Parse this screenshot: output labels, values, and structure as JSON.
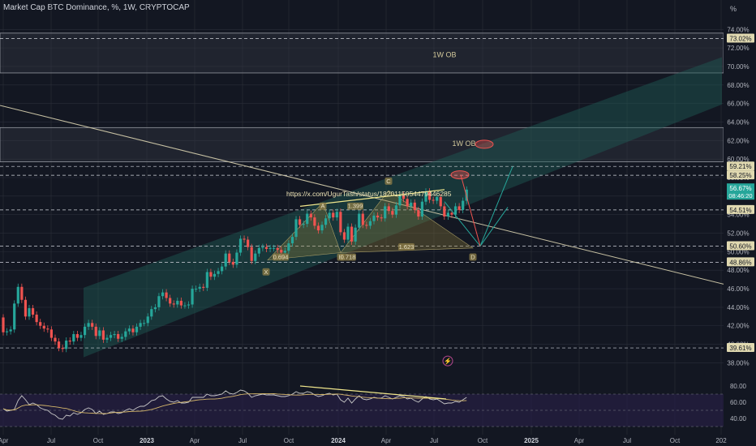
{
  "header": {
    "title": "Market Cap BTC Dominance, %, 1W, CRYPTOCAP"
  },
  "colors": {
    "background": "#131722",
    "up": "#26a69a",
    "down": "#ef5350",
    "channel": "#1f5d57",
    "grid": "#2a2e39",
    "yellow_line": "#f0e68c",
    "trend_line": "#c7c1a3",
    "label_bg": "#d1d4dc"
  },
  "chart_data": {
    "type": "candlestick",
    "title": "Market Cap BTC Dominance, %, 1W, CRYPTOCAP",
    "unit": "%",
    "x_ticks": [
      "Apr",
      "Jul",
      "Oct",
      "2023",
      "Apr",
      "Jul",
      "Oct",
      "2024",
      "Apr",
      "Jul",
      "Oct",
      "2025",
      "Apr",
      "Jul",
      "Oct",
      "202"
    ],
    "y_ticks": [
      "74.00%",
      "72.00%",
      "70.00%",
      "68.00%",
      "66.00%",
      "64.00%",
      "62.00%",
      "60.00%",
      "58.00%",
      "56.00%",
      "54.00%",
      "52.00%",
      "50.00%",
      "48.00%",
      "46.00%",
      "44.00%",
      "42.00%",
      "40.00%",
      "38.00%"
    ],
    "ylim": [
      37.6,
      75.6
    ],
    "price_labels": [
      {
        "text": "73.02%",
        "value": 73.02
      },
      {
        "text": "59.21%",
        "value": 59.21
      },
      {
        "text": "58.25%",
        "value": 58.25
      },
      {
        "text": "54.51%",
        "value": 54.51
      },
      {
        "text": "50.60%",
        "value": 50.6
      },
      {
        "text": "48.86%",
        "value": 48.86
      },
      {
        "text": "39.61%",
        "value": 39.61
      }
    ],
    "current": {
      "price": "56.67%",
      "countdown": "08:46:20"
    },
    "annotations": [
      {
        "text": "1W OB"
      },
      {
        "text": "1W OB"
      },
      {
        "text": "https://x.com/UgurTash/status/1820115054479446285"
      },
      {
        "text": "A"
      },
      {
        "text": "1.399"
      },
      {
        "text": "C"
      },
      {
        "text": "X"
      },
      {
        "text": "0.694"
      },
      {
        "text": "B"
      },
      {
        "text": "0.718"
      },
      {
        "text": "1.623"
      },
      {
        "text": "D"
      }
    ],
    "rsi": {
      "ticks": [
        "80.00",
        "60.00",
        "40.00"
      ],
      "ylim": [
        30,
        90
      ]
    },
    "series": [
      {
        "name": "BTC Dominance",
        "open": [
          42.9,
          41.3,
          41.4,
          41.6,
          44.4,
          46.2,
          44.8,
          43.0,
          43.9,
          43.2,
          42.4,
          42.0,
          41.7,
          41.6,
          40.7,
          40.3,
          39.6,
          39.5,
          40.4,
          40.3,
          41.1,
          40.7,
          41.0,
          41.9,
          42.3,
          41.9,
          40.9,
          41.5,
          40.5,
          40.7,
          41.0,
          41.1,
          40.6,
          40.8,
          41.4,
          41.7,
          41.3,
          41.9,
          42.3,
          42.3,
          43.0,
          43.8,
          44.0,
          45.2,
          45.6,
          45.0,
          44.4,
          44.3,
          44.7,
          44.2,
          44.2,
          44.3,
          46.0,
          46.0,
          46.2,
          46.1,
          47.8,
          47.3,
          47.6,
          47.9,
          48.4,
          49.8,
          48.9,
          48.6,
          49.9,
          51.4,
          51.3,
          50.5,
          49.0,
          49.8,
          50.4,
          50.5,
          50.3,
          50.4,
          50.4,
          50.2,
          49.9,
          50.1,
          50.9,
          51.6,
          53.5,
          52.9,
          53.0,
          54.1,
          53.7,
          52.8,
          52.3,
          52.9,
          53.6,
          54.2,
          53.7,
          54.3,
          52.1,
          51.3,
          52.7,
          51.1,
          52.6,
          54.1,
          52.9,
          52.8,
          53.3,
          53.9,
          53.7,
          53.6,
          54.9,
          54.4,
          54.0,
          55.0,
          56.1,
          55.7,
          54.9,
          55.3,
          54.5,
          53.8,
          55.4,
          56.5,
          55.6,
          55.5,
          55.9,
          54.9,
          53.8,
          54.2,
          54.0,
          54.9,
          54.5,
          55.5
        ],
        "close": [
          41.3,
          41.4,
          41.6,
          44.4,
          46.2,
          44.8,
          43.0,
          43.9,
          43.2,
          42.4,
          42.0,
          41.7,
          41.6,
          40.7,
          40.3,
          39.6,
          39.5,
          40.4,
          40.3,
          41.1,
          40.7,
          41.0,
          41.9,
          42.3,
          41.9,
          40.9,
          41.5,
          40.5,
          40.7,
          41.0,
          41.1,
          40.6,
          40.8,
          41.4,
          41.7,
          41.3,
          41.9,
          42.3,
          42.3,
          43.0,
          43.8,
          44.0,
          45.2,
          45.6,
          45.0,
          44.4,
          44.3,
          44.7,
          44.2,
          44.2,
          44.3,
          46.0,
          46.0,
          46.2,
          46.1,
          47.8,
          47.3,
          47.6,
          47.9,
          48.4,
          49.8,
          48.9,
          48.6,
          49.9,
          51.4,
          51.3,
          50.5,
          49.0,
          49.8,
          50.4,
          50.5,
          50.3,
          50.4,
          50.4,
          50.2,
          49.9,
          50.1,
          50.9,
          51.6,
          53.5,
          52.9,
          53.0,
          54.1,
          53.7,
          52.8,
          52.3,
          52.9,
          53.6,
          54.2,
          53.7,
          54.3,
          52.1,
          51.3,
          52.7,
          51.1,
          52.6,
          54.1,
          52.9,
          52.8,
          53.3,
          53.9,
          53.7,
          53.6,
          54.9,
          54.4,
          54.0,
          55.0,
          56.1,
          55.7,
          54.9,
          55.3,
          54.5,
          53.8,
          55.4,
          56.5,
          55.6,
          55.5,
          55.9,
          54.9,
          53.8,
          54.2,
          54.0,
          54.9,
          54.5,
          55.5,
          56.7
        ]
      },
      {
        "name": "RSI",
        "values": [
          52,
          49,
          50,
          51,
          62,
          68,
          63,
          57,
          59,
          57,
          53,
          51,
          50,
          46,
          44,
          40,
          39,
          44,
          43,
          47,
          45,
          47,
          51,
          53,
          51,
          46,
          49,
          45,
          46,
          48,
          48,
          46,
          47,
          50,
          52,
          50,
          53,
          55,
          55,
          58,
          62,
          63,
          67,
          68,
          64,
          61,
          60,
          62,
          59,
          59,
          60,
          66,
          66,
          66,
          66,
          70,
          68,
          68,
          69,
          70,
          74,
          71,
          70,
          72,
          75,
          74,
          71,
          66,
          68,
          69,
          70,
          69,
          69,
          69,
          68,
          67,
          67,
          68,
          70,
          73,
          71,
          71,
          73,
          72,
          69,
          67,
          68,
          70,
          71,
          69,
          70,
          63,
          60,
          65,
          59,
          64,
          68,
          64,
          63,
          64,
          66,
          65,
          65,
          68,
          66,
          64,
          66,
          68,
          67,
          64,
          65,
          62,
          60,
          64,
          67,
          64,
          63,
          64,
          61,
          58,
          59,
          59,
          61,
          60,
          63,
          66
        ]
      }
    ]
  }
}
